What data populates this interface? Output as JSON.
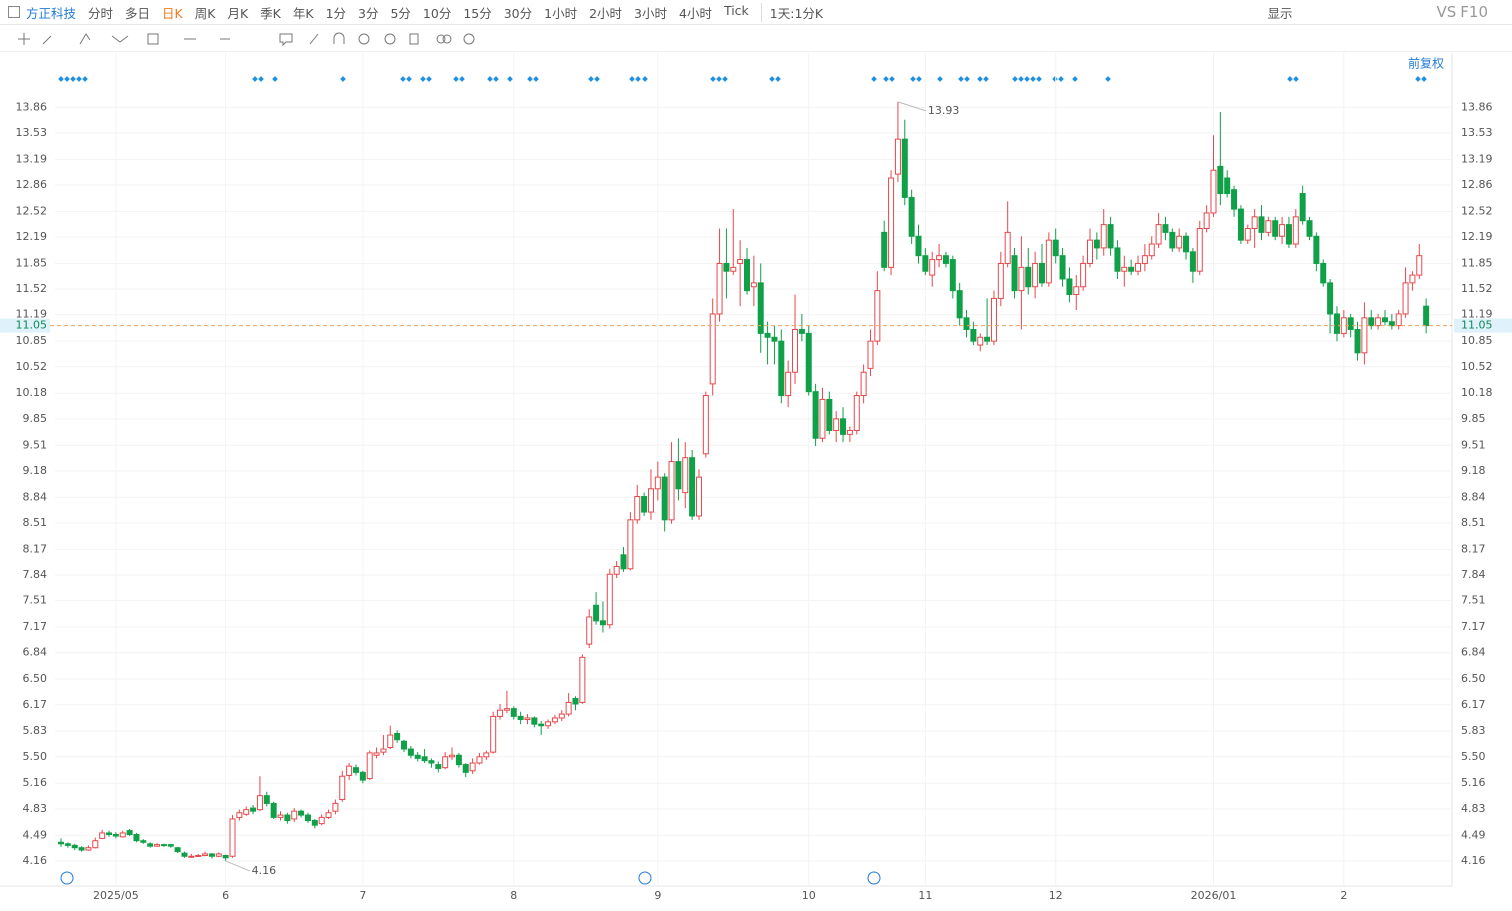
{
  "toolbar": {
    "symbol": "方正科技",
    "periods": [
      "分时",
      "多日",
      "日K",
      "周K",
      "月K",
      "季K",
      "年K",
      "1分",
      "3分",
      "5分",
      "10分",
      "15分",
      "30分",
      "1小时",
      "2小时",
      "3小时",
      "4小时",
      "Tick"
    ],
    "active_period": "日K",
    "range_selector": "1天:1分K",
    "display": "显示",
    "vs": "VS",
    "f10": "F10",
    "adjust": "前复权"
  },
  "chart_data": {
    "type": "candlestick",
    "up_color": "#e8474c",
    "down_color": "#0fa048",
    "price_line_color": "#f0a060",
    "grid": true,
    "ylim": [
      3.85,
      14.34
    ],
    "yticks": [
      13.86,
      13.53,
      13.19,
      12.86,
      12.52,
      12.19,
      11.85,
      11.52,
      11.19,
      10.85,
      10.52,
      10.18,
      9.85,
      9.51,
      9.18,
      8.84,
      8.51,
      8.17,
      7.84,
      7.51,
      7.17,
      6.84,
      {
        "value": 6.5,
        "label": "6.50"
      },
      6.17,
      5.83,
      {
        "value": 5.5,
        "label": "5.50"
      },
      5.16,
      4.83,
      4.49,
      4.16
    ],
    "categories": [
      null,
      null,
      null,
      null,
      null,
      null,
      null,
      null,
      "2025/05",
      null,
      null,
      null,
      null,
      null,
      null,
      null,
      null,
      null,
      null,
      null,
      null,
      null,
      null,
      null,
      "6",
      null,
      null,
      null,
      null,
      null,
      null,
      null,
      null,
      null,
      null,
      null,
      null,
      null,
      null,
      null,
      null,
      null,
      null,
      null,
      "7",
      null,
      null,
      null,
      null,
      null,
      null,
      null,
      null,
      null,
      null,
      null,
      null,
      null,
      null,
      null,
      null,
      null,
      null,
      null,
      null,
      null,
      "8",
      null,
      null,
      null,
      null,
      null,
      null,
      null,
      null,
      null,
      null,
      null,
      null,
      null,
      null,
      null,
      null,
      null,
      null,
      null,
      null,
      "9",
      null,
      null,
      null,
      null,
      null,
      null,
      null,
      null,
      null,
      null,
      null,
      null,
      null,
      null,
      null,
      null,
      null,
      null,
      null,
      null,
      null,
      "10",
      null,
      null,
      null,
      null,
      null,
      null,
      null,
      null,
      null,
      null,
      null,
      null,
      null,
      null,
      null,
      null,
      "11",
      null,
      null,
      null,
      null,
      null,
      null,
      null,
      null,
      null,
      null,
      null,
      null,
      null,
      null,
      null,
      null,
      null,
      null,
      "12",
      null,
      null,
      null,
      null,
      null,
      null,
      null,
      null,
      null,
      null,
      null,
      null,
      null,
      null,
      null,
      null,
      null,
      null,
      null,
      null,
      null,
      null,
      "2026/01",
      null,
      null,
      null,
      null,
      null,
      null,
      null,
      null,
      null,
      null,
      null,
      null,
      null,
      null,
      null,
      null,
      null,
      null,
      "2",
      null,
      null,
      null,
      null,
      null,
      null,
      null,
      null,
      null,
      null,
      null,
      null
    ],
    "ohlc": [
      [
        4.4,
        4.45,
        4.34,
        4.38
      ],
      [
        4.38,
        4.4,
        4.33,
        4.36
      ],
      [
        4.36,
        4.38,
        4.3,
        4.33
      ],
      [
        4.33,
        4.35,
        4.28,
        4.3
      ],
      [
        4.3,
        4.36,
        4.29,
        4.33
      ],
      [
        4.33,
        4.46,
        4.32,
        4.42
      ],
      [
        4.45,
        4.56,
        4.44,
        4.52
      ],
      [
        4.52,
        4.55,
        4.47,
        4.5
      ],
      [
        4.5,
        4.53,
        4.45,
        4.48
      ],
      [
        4.47,
        4.55,
        4.46,
        4.52
      ],
      [
        4.55,
        4.57,
        4.48,
        4.5
      ],
      [
        4.5,
        4.52,
        4.4,
        4.42
      ],
      [
        4.42,
        4.44,
        4.38,
        4.4
      ],
      [
        4.38,
        4.4,
        4.33,
        4.35
      ],
      [
        4.35,
        4.39,
        4.34,
        4.37
      ],
      [
        4.37,
        4.38,
        4.34,
        4.36
      ],
      [
        4.37,
        4.38,
        4.33,
        4.35
      ],
      [
        4.33,
        4.34,
        4.26,
        4.28
      ],
      [
        4.26,
        4.28,
        4.2,
        4.22
      ],
      [
        4.21,
        4.25,
        4.2,
        4.22
      ],
      [
        4.22,
        4.25,
        4.21,
        4.23
      ],
      [
        4.23,
        4.28,
        4.22,
        4.25
      ],
      [
        4.25,
        4.26,
        4.19,
        4.22
      ],
      [
        4.22,
        4.27,
        4.21,
        4.25
      ],
      [
        4.23,
        4.24,
        4.16,
        4.2
      ],
      [
        4.22,
        4.75,
        4.2,
        4.7
      ],
      [
        4.72,
        4.82,
        4.68,
        4.78
      ],
      [
        4.76,
        4.86,
        4.74,
        4.82
      ],
      [
        4.84,
        4.88,
        4.76,
        4.8
      ],
      [
        4.82,
        5.25,
        4.8,
        5.0
      ],
      [
        5.0,
        5.05,
        4.86,
        4.9
      ],
      [
        4.9,
        4.92,
        4.7,
        4.72
      ],
      [
        4.72,
        4.8,
        4.68,
        4.75
      ],
      [
        4.75,
        4.78,
        4.64,
        4.68
      ],
      [
        4.7,
        4.84,
        4.66,
        4.8
      ],
      [
        4.8,
        4.82,
        4.72,
        4.75
      ],
      [
        4.75,
        4.78,
        4.65,
        4.68
      ],
      [
        4.68,
        4.7,
        4.58,
        4.62
      ],
      [
        4.64,
        4.76,
        4.62,
        4.72
      ],
      [
        4.72,
        4.82,
        4.7,
        4.78
      ],
      [
        4.8,
        4.95,
        4.76,
        4.9
      ],
      [
        4.95,
        5.32,
        4.92,
        5.25
      ],
      [
        5.26,
        5.42,
        5.2,
        5.38
      ],
      [
        5.36,
        5.4,
        5.26,
        5.3
      ],
      [
        5.3,
        5.32,
        5.16,
        5.2
      ],
      [
        5.22,
        5.58,
        5.2,
        5.55
      ],
      [
        5.52,
        5.62,
        5.48,
        5.55
      ],
      [
        5.56,
        5.78,
        5.52,
        5.6
      ],
      [
        5.62,
        5.9,
        5.6,
        5.78
      ],
      [
        5.8,
        5.84,
        5.68,
        5.72
      ],
      [
        5.7,
        5.72,
        5.56,
        5.6
      ],
      [
        5.6,
        5.64,
        5.48,
        5.52
      ],
      [
        5.52,
        5.56,
        5.44,
        5.48
      ],
      [
        5.5,
        5.6,
        5.42,
        5.45
      ],
      [
        5.45,
        5.48,
        5.36,
        5.42
      ],
      [
        5.4,
        5.44,
        5.3,
        5.35
      ],
      [
        5.36,
        5.56,
        5.34,
        5.5
      ],
      [
        5.5,
        5.62,
        5.46,
        5.52
      ],
      [
        5.52,
        5.55,
        5.36,
        5.4
      ],
      [
        5.4,
        5.42,
        5.24,
        5.3
      ],
      [
        5.32,
        5.48,
        5.28,
        5.42
      ],
      [
        5.42,
        5.55,
        5.4,
        5.5
      ],
      [
        5.5,
        5.58,
        5.46,
        5.55
      ],
      [
        5.56,
        6.08,
        5.54,
        6.02
      ],
      [
        6.02,
        6.18,
        5.98,
        6.1
      ],
      [
        6.1,
        6.35,
        6.06,
        6.12
      ],
      [
        6.12,
        6.15,
        5.98,
        6.02
      ],
      [
        6.02,
        6.08,
        5.92,
        5.98
      ],
      [
        5.98,
        6.05,
        5.92,
        6.0
      ],
      [
        6.0,
        6.02,
        5.88,
        5.92
      ],
      [
        5.92,
        5.96,
        5.78,
        5.9
      ],
      [
        5.9,
        5.98,
        5.86,
        5.95
      ],
      [
        5.95,
        6.04,
        5.92,
        6.0
      ],
      [
        6.0,
        6.1,
        5.96,
        6.05
      ],
      [
        6.05,
        6.32,
        6.02,
        6.2
      ],
      [
        6.25,
        6.28,
        6.1,
        6.18
      ],
      [
        6.2,
        6.82,
        6.18,
        6.78
      ],
      [
        6.95,
        7.4,
        6.9,
        7.3
      ],
      [
        7.45,
        7.62,
        7.2,
        7.25
      ],
      [
        7.25,
        7.5,
        7.1,
        7.2
      ],
      [
        7.2,
        7.92,
        7.15,
        7.85
      ],
      [
        7.85,
        8.02,
        7.8,
        7.95
      ],
      [
        8.1,
        8.2,
        7.88,
        7.92
      ],
      [
        7.92,
        8.65,
        7.9,
        8.55
      ],
      [
        8.55,
        9.0,
        8.5,
        8.85
      ],
      [
        8.85,
        8.9,
        8.6,
        8.65
      ],
      [
        8.65,
        9.2,
        8.55,
        8.95
      ],
      [
        8.95,
        9.3,
        8.8,
        9.1
      ],
      [
        9.1,
        9.15,
        8.4,
        8.55
      ],
      [
        8.55,
        9.55,
        8.5,
        9.3
      ],
      [
        9.3,
        9.6,
        8.8,
        8.95
      ],
      [
        8.9,
        9.55,
        8.7,
        9.35
      ],
      [
        9.35,
        9.45,
        8.55,
        8.6
      ],
      [
        8.6,
        9.2,
        8.55,
        9.1
      ],
      [
        9.4,
        10.2,
        9.35,
        10.15
      ],
      [
        10.3,
        11.4,
        10.15,
        11.2
      ],
      [
        11.2,
        12.3,
        11.1,
        11.85
      ],
      [
        11.85,
        12.3,
        11.4,
        11.75
      ],
      [
        11.75,
        12.55,
        11.7,
        11.8
      ],
      [
        11.85,
        12.15,
        11.3,
        11.9
      ],
      [
        11.9,
        12.05,
        11.45,
        11.5
      ],
      [
        11.55,
        11.95,
        11.3,
        11.6
      ],
      [
        11.6,
        11.85,
        10.7,
        10.95
      ],
      [
        10.95,
        11.1,
        10.55,
        10.9
      ],
      [
        10.9,
        11.05,
        10.55,
        10.85
      ],
      [
        10.85,
        11.0,
        10.05,
        10.15
      ],
      [
        10.15,
        10.6,
        10.0,
        10.45
      ],
      [
        10.45,
        11.45,
        10.3,
        11.0
      ],
      [
        11.0,
        11.2,
        10.85,
        10.95
      ],
      [
        10.95,
        11.05,
        10.15,
        10.2
      ],
      [
        10.2,
        10.3,
        9.5,
        9.6
      ],
      [
        9.6,
        10.25,
        9.55,
        10.1
      ],
      [
        10.1,
        10.2,
        9.65,
        9.7
      ],
      [
        9.7,
        9.95,
        9.55,
        9.85
      ],
      [
        9.85,
        10.0,
        9.55,
        9.65
      ],
      [
        9.65,
        9.75,
        9.55,
        9.7
      ],
      [
        9.7,
        10.2,
        9.65,
        10.15
      ],
      [
        10.15,
        10.55,
        10.05,
        10.45
      ],
      [
        10.5,
        11.0,
        10.4,
        10.85
      ],
      [
        10.85,
        11.75,
        10.8,
        11.5
      ],
      [
        12.25,
        12.4,
        11.75,
        11.8
      ],
      [
        11.8,
        13.05,
        11.7,
        12.95
      ],
      [
        13.0,
        13.93,
        12.9,
        13.45
      ],
      [
        13.45,
        13.7,
        12.6,
        12.7
      ],
      [
        12.7,
        12.8,
        12.1,
        12.2
      ],
      [
        12.2,
        12.35,
        11.85,
        11.95
      ],
      [
        11.95,
        12.05,
        11.7,
        11.75
      ],
      [
        11.7,
        12.0,
        11.55,
        11.9
      ],
      [
        11.9,
        12.1,
        11.8,
        11.95
      ],
      [
        11.95,
        12.0,
        11.8,
        11.85
      ],
      [
        11.9,
        11.95,
        11.4,
        11.5
      ],
      [
        11.5,
        11.6,
        11.05,
        11.15
      ],
      [
        11.15,
        11.25,
        10.9,
        11.0
      ],
      [
        11.0,
        11.1,
        10.8,
        10.85
      ],
      [
        10.8,
        10.95,
        10.72,
        10.9
      ],
      [
        10.9,
        11.4,
        10.8,
        10.85
      ],
      [
        10.85,
        11.5,
        10.8,
        11.4
      ],
      [
        11.4,
        12.0,
        11.3,
        11.85
      ],
      [
        11.85,
        12.65,
        11.8,
        12.25
      ],
      [
        11.95,
        12.05,
        11.4,
        11.5
      ],
      [
        11.5,
        12.2,
        11.0,
        11.8
      ],
      [
        11.8,
        12.05,
        11.45,
        11.55
      ],
      [
        11.55,
        12.0,
        11.4,
        11.85
      ],
      [
        11.85,
        12.1,
        11.55,
        11.6
      ],
      [
        11.6,
        12.25,
        11.55,
        12.15
      ],
      [
        12.15,
        12.3,
        11.85,
        11.95
      ],
      [
        11.95,
        12.05,
        11.55,
        11.65
      ],
      [
        11.65,
        11.8,
        11.35,
        11.45
      ],
      [
        11.45,
        11.7,
        11.25,
        11.55
      ],
      [
        11.55,
        11.95,
        11.5,
        11.85
      ],
      [
        11.85,
        12.3,
        11.8,
        12.15
      ],
      [
        12.15,
        12.25,
        11.9,
        12.05
      ],
      [
        12.05,
        12.55,
        11.95,
        12.35
      ],
      [
        12.35,
        12.45,
        11.95,
        12.05
      ],
      [
        12.05,
        12.15,
        11.65,
        11.75
      ],
      [
        11.75,
        11.95,
        11.55,
        11.8
      ],
      [
        11.8,
        11.9,
        11.7,
        11.75
      ],
      [
        11.75,
        11.95,
        11.7,
        11.85
      ],
      [
        11.85,
        12.1,
        11.75,
        11.95
      ],
      [
        11.95,
        12.2,
        11.9,
        12.1
      ],
      [
        12.1,
        12.5,
        12.05,
        12.35
      ],
      [
        12.35,
        12.45,
        12.15,
        12.25
      ],
      [
        12.25,
        12.3,
        12.0,
        12.05
      ],
      [
        12.05,
        12.3,
        12.0,
        12.2
      ],
      [
        12.2,
        12.25,
        11.9,
        12.0
      ],
      [
        12.0,
        12.05,
        11.6,
        11.75
      ],
      [
        11.75,
        12.4,
        11.7,
        12.3
      ],
      [
        12.3,
        12.6,
        12.25,
        12.5
      ],
      [
        12.5,
        13.5,
        12.45,
        13.05
      ],
      [
        13.1,
        13.8,
        12.6,
        12.75
      ],
      [
        12.95,
        13.05,
        12.7,
        12.75
      ],
      [
        12.8,
        12.85,
        12.45,
        12.55
      ],
      [
        12.55,
        12.6,
        12.1,
        12.15
      ],
      [
        12.15,
        12.35,
        12.1,
        12.3
      ],
      [
        12.3,
        12.55,
        12.05,
        12.45
      ],
      [
        12.45,
        12.6,
        12.15,
        12.25
      ],
      [
        12.25,
        12.45,
        12.2,
        12.4
      ],
      [
        12.4,
        12.45,
        12.15,
        12.2
      ],
      [
        12.2,
        12.45,
        12.1,
        12.35
      ],
      [
        12.35,
        12.45,
        12.05,
        12.1
      ],
      [
        12.1,
        12.55,
        12.05,
        12.45
      ],
      [
        12.75,
        12.85,
        12.35,
        12.4
      ],
      [
        12.4,
        12.45,
        12.15,
        12.2
      ],
      [
        12.2,
        12.25,
        11.75,
        11.85
      ],
      [
        11.85,
        11.9,
        11.55,
        11.6
      ],
      [
        11.6,
        11.65,
        10.95,
        11.2
      ],
      [
        11.2,
        11.3,
        10.85,
        10.95
      ],
      [
        10.95,
        11.25,
        10.9,
        11.15
      ],
      [
        11.15,
        11.2,
        10.9,
        11.0
      ],
      [
        11.0,
        11.1,
        10.6,
        10.7
      ],
      [
        10.7,
        11.35,
        10.55,
        11.15
      ],
      [
        11.15,
        11.25,
        11.0,
        11.05
      ],
      [
        11.05,
        11.2,
        11.0,
        11.15
      ],
      [
        11.15,
        11.25,
        11.05,
        11.1
      ],
      [
        11.1,
        11.2,
        11.0,
        11.05
      ],
      [
        11.05,
        11.25,
        11.0,
        11.2
      ],
      [
        11.2,
        11.8,
        11.15,
        11.6
      ],
      [
        11.6,
        11.75,
        11.5,
        11.7
      ],
      [
        11.7,
        12.1,
        11.65,
        11.95
      ],
      [
        11.3,
        11.4,
        10.95,
        11.05
      ]
    ]
  }
}
